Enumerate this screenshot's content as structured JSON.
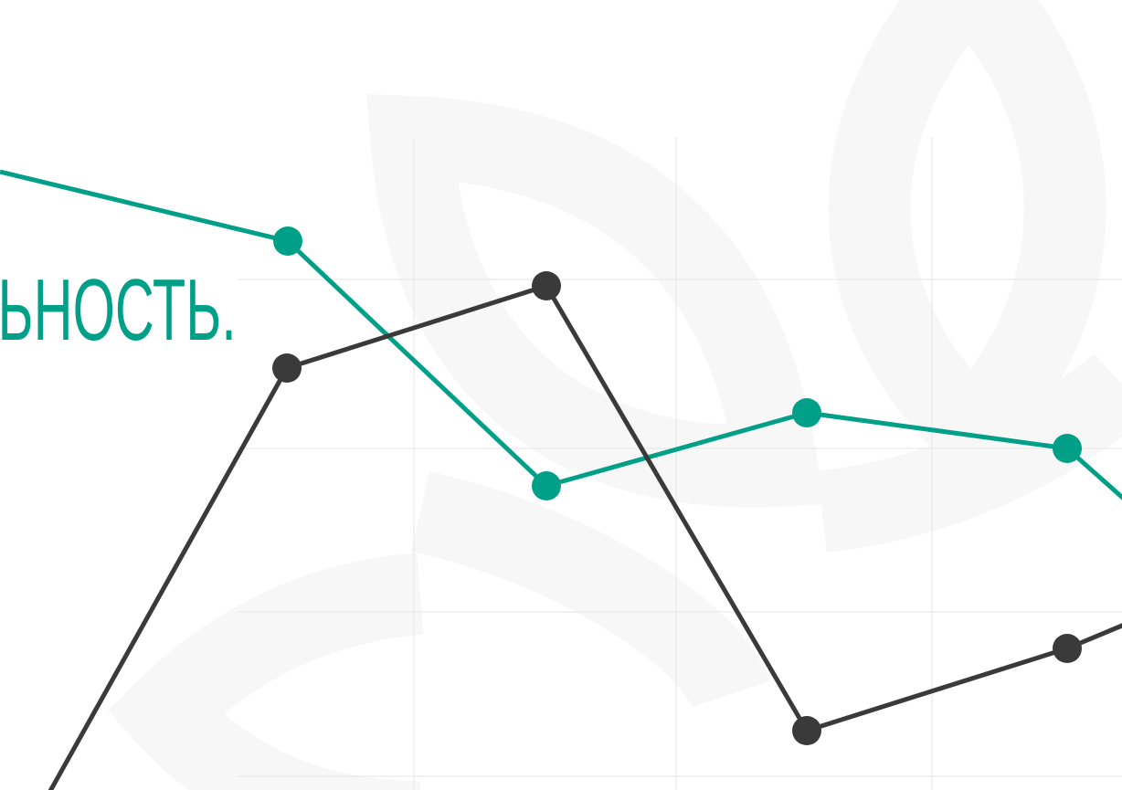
{
  "header": {
    "title": "ЬНОСТЬ."
  }
}
